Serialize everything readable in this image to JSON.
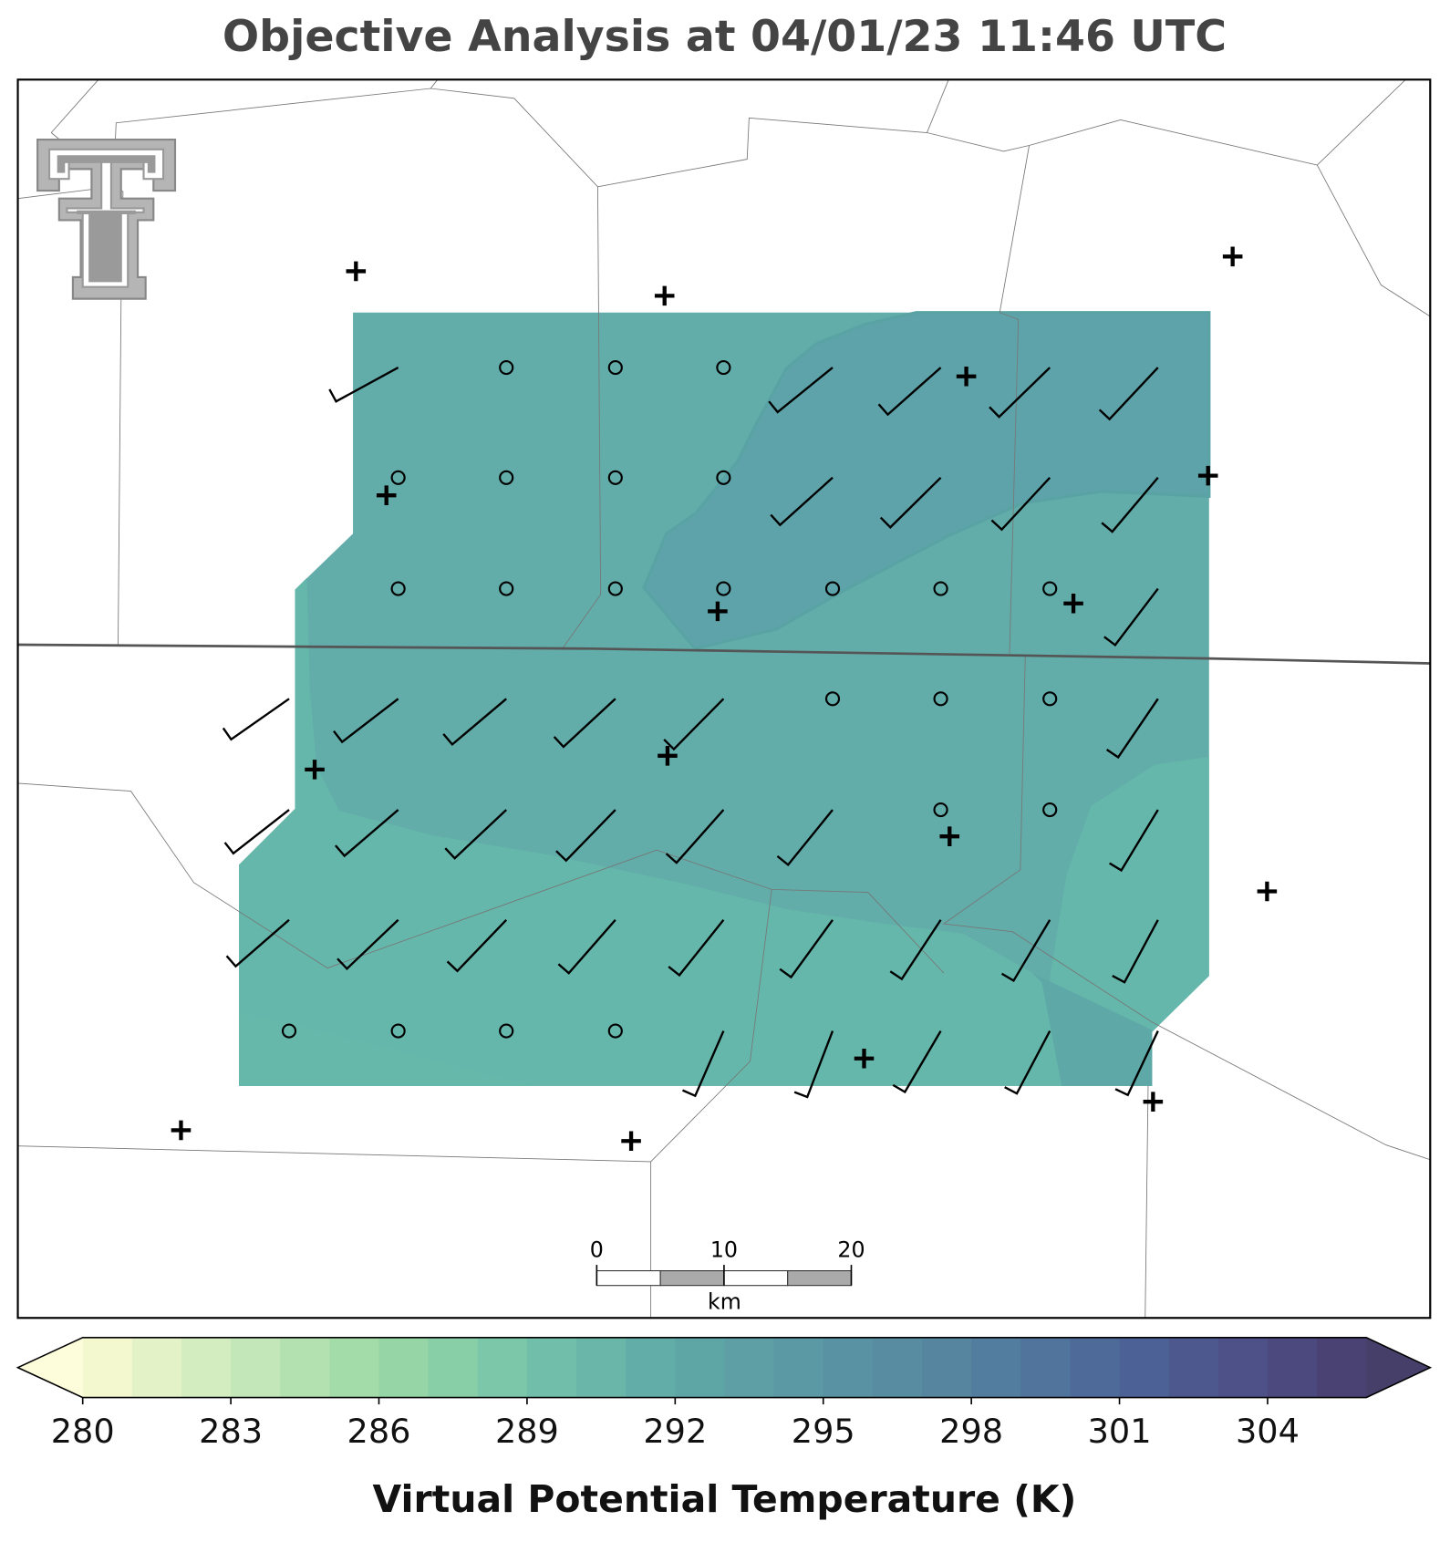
{
  "title": "Objective Analysis at 04/01/23 11:46 UTC",
  "colorbar": {
    "label": "Virtual Potential Temperature (K)",
    "lim": [
      280,
      306
    ],
    "ticks": [
      280,
      283,
      286,
      289,
      292,
      295,
      298,
      301,
      304
    ]
  },
  "scale_bar": {
    "ticks": [
      0,
      10,
      20
    ],
    "unit": "km"
  }
}
